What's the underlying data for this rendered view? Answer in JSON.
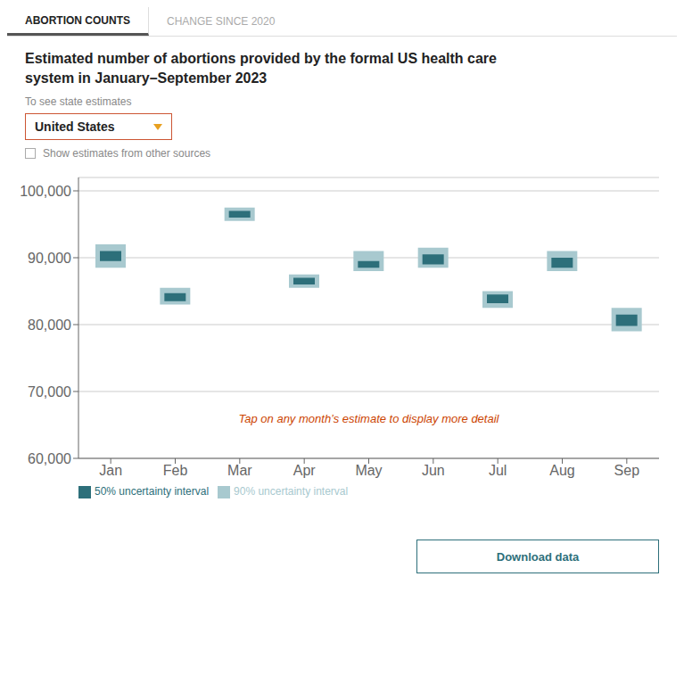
{
  "chart_data": {
    "type": "bar",
    "title": [
      "Estimated number of abortions provided by the formal US health care",
      "system in January–September 2023"
    ],
    "subtitle": "To see state estimates",
    "tabs": [
      "ABORTION COUNTS",
      "CHANGE SINCE 2020"
    ],
    "dropdown": "United States",
    "checkbox": "Show estimates from other sources",
    "button": "Download data",
    "annotation": "Tap on any month’s estimate to display more detail",
    "categories": [
      "Jan",
      "Feb",
      "Mar",
      "Apr",
      "May",
      "Jun",
      "Jul",
      "Aug",
      "Sep"
    ],
    "series": [
      {
        "name": "90% uncertainty interval",
        "color": "#a8c9cf",
        "values": [
          [
            88500,
            92000
          ],
          [
            83000,
            85500
          ],
          [
            95500,
            97500
          ],
          [
            85500,
            87500
          ],
          [
            88000,
            91000
          ],
          [
            88500,
            91500
          ],
          [
            82500,
            85000
          ],
          [
            88000,
            91000
          ],
          [
            79000,
            82500
          ]
        ]
      },
      {
        "name": "50% uncertainty interval",
        "color": "#2d6f7a",
        "values": [
          [
            89500,
            91000
          ],
          [
            83500,
            84700
          ],
          [
            96000,
            97000
          ],
          [
            86000,
            87000
          ],
          [
            88500,
            89500
          ],
          [
            89000,
            90500
          ],
          [
            83200,
            84500
          ],
          [
            88500,
            90000
          ],
          [
            79800,
            81500
          ]
        ]
      }
    ],
    "ylim": [
      60000,
      102000
    ],
    "yticks": [
      {
        "value": 60000,
        "label": "60,000"
      },
      {
        "value": 70000,
        "label": "70,000"
      },
      {
        "value": 80000,
        "label": "80,000"
      },
      {
        "value": 90000,
        "label": "90,000"
      },
      {
        "value": 100000,
        "label": "100,000"
      }
    ],
    "grid": true,
    "legend": "bottom"
  }
}
